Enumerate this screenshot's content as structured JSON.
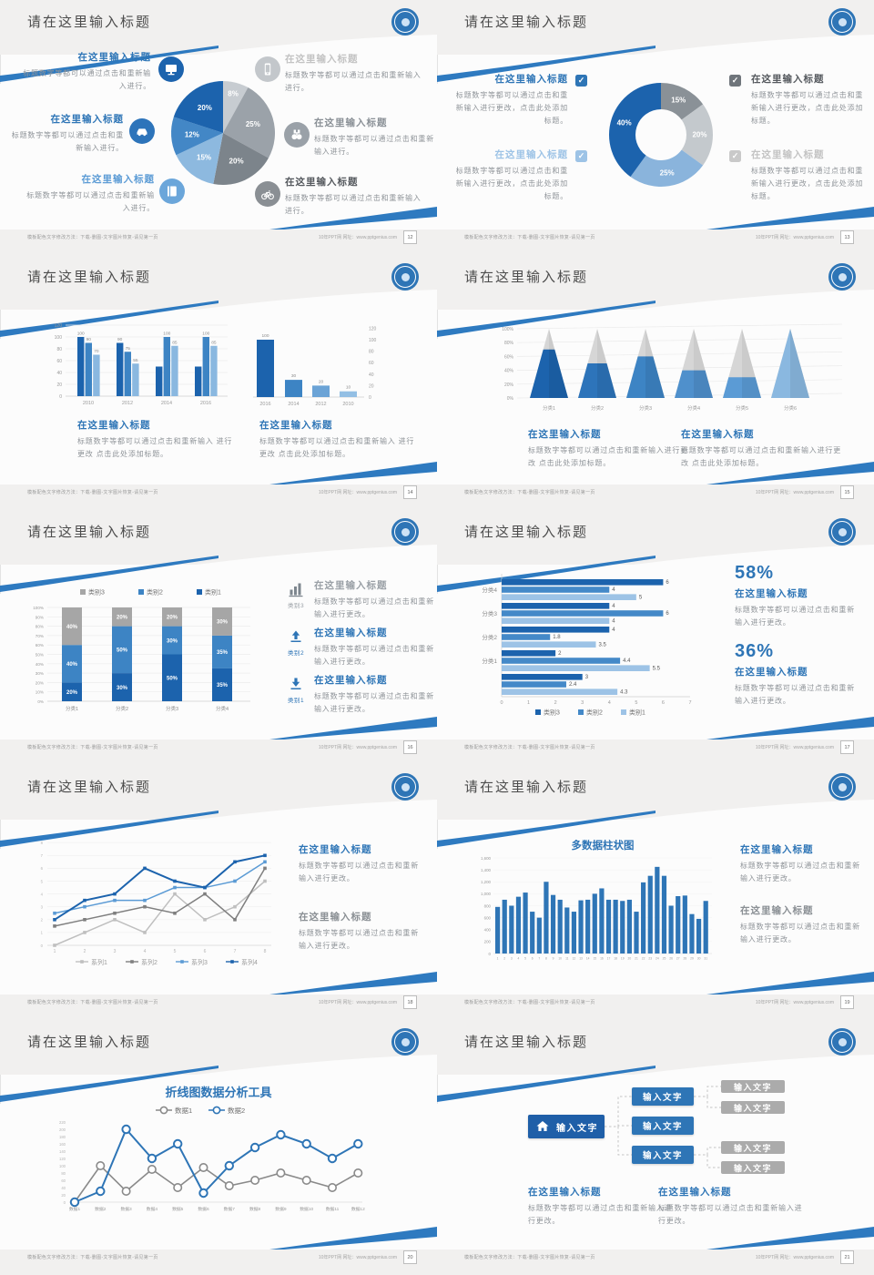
{
  "colors": {
    "accent": "#2e75b6",
    "header_band": "#f1f0ef",
    "slide_bg": "#fcfcfc",
    "title_text": "#4c4c4c",
    "body_text": "#8f9499"
  },
  "footer": {
    "left": "模板配色文字修改方法：下载-删图-文字图片恢复-请见第一页",
    "right_site": "10年PPT网",
    "right_label": "网址：",
    "right_url": "www.pptgenius.com"
  },
  "chart_data": [
    {
      "type": "pie",
      "slices": [
        {
          "label": "8%",
          "value": 8,
          "color": "#c7ccd1"
        },
        {
          "label": "25%",
          "value": 25,
          "color": "#9ba2a9"
        },
        {
          "label": "20%",
          "value": 20,
          "color": "#7c848b"
        },
        {
          "label": "15%",
          "value": 15,
          "color": "#8db9df"
        },
        {
          "label": "12%",
          "value": 12,
          "color": "#4387c6"
        },
        {
          "label": "20%",
          "value": 20,
          "color": "#1c63ad"
        }
      ]
    },
    {
      "type": "donut",
      "slices": [
        {
          "label": "15%",
          "value": 15,
          "color": "#8a9197"
        },
        {
          "label": "20%",
          "value": 20,
          "color": "#c4c9cd"
        },
        {
          "label": "25%",
          "value": 25,
          "color": "#8ab4dc"
        },
        {
          "label": "40%",
          "value": 40,
          "color": "#1c63ad"
        }
      ]
    },
    {
      "type": "grouped_bar",
      "categories": [
        "2010",
        "2012",
        "2014",
        "2016"
      ],
      "ylim": [
        0,
        120
      ],
      "yticks": [
        "0",
        "20",
        "40",
        "60",
        "80",
        "100",
        "120"
      ],
      "series": [
        {
          "name": "系列1",
          "color": "#1c63ad",
          "values": [
            100,
            90,
            50,
            50
          ]
        },
        {
          "name": "系列2",
          "color": "#3d84c4",
          "values": [
            90,
            75,
            100,
            100
          ]
        },
        {
          "name": "系列3",
          "color": "#8ab8e0",
          "values": [
            70,
            55,
            85,
            85
          ]
        }
      ],
      "value_labels": [
        [
          "100",
          "90",
          "70"
        ],
        [
          "90",
          "75",
          "55"
        ],
        [
          "",
          "100",
          "85"
        ],
        [
          "",
          "100",
          "85"
        ]
      ]
    },
    {
      "type": "bar",
      "categories": [
        "2016",
        "2014",
        "2012",
        "2010"
      ],
      "values": [
        100,
        30,
        20,
        10
      ],
      "value_labels": [
        "100",
        "30",
        "20",
        "10"
      ],
      "ylim": [
        0,
        120
      ],
      "y_axis": "right",
      "colors": [
        "#1c63ad",
        "#3d84c4",
        "#6ba3d6",
        "#93bfe4"
      ],
      "yticks": [
        "0",
        "20",
        "40",
        "60",
        "80",
        "100",
        "120"
      ]
    },
    {
      "type": "pyramid",
      "categories": [
        "分类1",
        "分类2",
        "分类3",
        "分类4",
        "分类5",
        "分类6"
      ],
      "fill_percent": [
        70,
        50,
        60,
        40,
        30,
        100
      ],
      "colors": [
        "#1c63ad",
        "#2d74ba",
        "#3d84c4",
        "#4f90cc",
        "#5b9bd5",
        "#8ab8e0"
      ],
      "yticks": [
        "0%",
        "20%",
        "40%",
        "60%",
        "80%",
        "100%"
      ]
    },
    {
      "type": "stacked_bar",
      "categories": [
        "分类1",
        "分类2",
        "分类3",
        "分类4"
      ],
      "series": [
        {
          "name": "类别1",
          "color": "#1c63ad",
          "values": [
            20,
            30,
            50,
            35
          ]
        },
        {
          "name": "类别2",
          "color": "#3d84c4",
          "values": [
            40,
            50,
            30,
            35
          ]
        },
        {
          "name": "类别3",
          "color": "#a6a6a6",
          "values": [
            40,
            20,
            20,
            30
          ]
        }
      ],
      "legend": [
        "类别3",
        "类别2",
        "类别1"
      ],
      "legend_colors": [
        "#a6a6a6",
        "#3d84c4",
        "#1c63ad"
      ],
      "yticks": [
        "0%",
        "10%",
        "20%",
        "30%",
        "40%",
        "50%",
        "60%",
        "70%",
        "80%",
        "90%",
        "100%"
      ]
    },
    {
      "type": "hbar",
      "xticks": [
        "0",
        "1",
        "2",
        "3",
        "4",
        "5",
        "6",
        "7"
      ],
      "xlim": [
        0,
        7
      ],
      "groups": [
        {
          "label": "分类4",
          "values": [
            6,
            4,
            5
          ]
        },
        {
          "label": "分类3",
          "values": [
            4,
            6,
            4
          ]
        },
        {
          "label": "分类2",
          "values": [
            4,
            1.8,
            3.5
          ]
        },
        {
          "label": "分类1",
          "values": [
            2,
            4.4,
            5.5
          ]
        },
        {
          "label": "",
          "values": [
            3,
            2.4,
            4.3
          ]
        }
      ],
      "value_labels": [
        [
          "6",
          "4",
          "5"
        ],
        [
          "4",
          "6",
          "4"
        ],
        [
          "4",
          "1.8",
          "3.5"
        ],
        [
          "2",
          "4.4",
          "5.5"
        ],
        [
          "3",
          "2.4",
          "4.3"
        ]
      ],
      "series_names": [
        "类别3",
        "类别2",
        "类别1"
      ],
      "series_colors": [
        "#1c63ad",
        "#4489c8",
        "#9dc3e6"
      ]
    },
    {
      "type": "line",
      "xticks": [
        "1",
        "2",
        "3",
        "4",
        "5",
        "6",
        "7",
        "8"
      ],
      "ylim": [
        0,
        8
      ],
      "yticks": [
        "0",
        "1",
        "2",
        "3",
        "4",
        "5",
        "6",
        "7",
        "8"
      ],
      "series": [
        {
          "name": "系列1",
          "color": "#bfbfbf",
          "values": [
            0,
            1,
            2,
            1,
            4,
            2,
            3,
            5
          ]
        },
        {
          "name": "系列2",
          "color": "#7f7f7f",
          "values": [
            1.5,
            2,
            2.5,
            3,
            2.5,
            4,
            2,
            6
          ]
        },
        {
          "name": "系列3",
          "color": "#5b9bd5",
          "values": [
            2.5,
            3,
            3.5,
            3.5,
            4.5,
            4.5,
            5,
            6.5
          ]
        },
        {
          "name": "系列4",
          "color": "#1c63ad",
          "values": [
            2,
            3.5,
            4,
            6,
            5,
            4.5,
            6.5,
            7
          ]
        }
      ]
    },
    {
      "type": "column",
      "title": "多数据柱状图",
      "color": "#2e75b6",
      "ylim": [
        0,
        1600
      ],
      "yticks": [
        "0",
        "200",
        "400",
        "600",
        "800",
        "1,000",
        "1,200",
        "1,400",
        "1,600"
      ],
      "categories": [
        "1",
        "2",
        "3",
        "4",
        "5",
        "6",
        "7",
        "8",
        "9",
        "10",
        "11",
        "12",
        "13",
        "14",
        "15",
        "16",
        "17",
        "18",
        "19",
        "20",
        "21",
        "22",
        "23",
        "24",
        "25",
        "26",
        "27",
        "28",
        "29",
        "30",
        "31"
      ],
      "values": [
        780,
        900,
        800,
        950,
        1020,
        700,
        600,
        1200,
        980,
        900,
        770,
        700,
        890,
        900,
        1000,
        1090,
        900,
        900,
        880,
        900,
        700,
        1190,
        1300,
        1450,
        1300,
        800,
        960,
        970,
        660,
        580,
        880
      ]
    },
    {
      "type": "line_markers",
      "title": "折线图数据分析工具",
      "ylim": [
        0,
        220
      ],
      "yticks": [
        "0",
        "20",
        "40",
        "60",
        "80",
        "100",
        "120",
        "140",
        "160",
        "180",
        "200",
        "220"
      ],
      "categories": [
        "数据1",
        "数据2",
        "数据3",
        "数据4",
        "数据5",
        "数据6",
        "数据7",
        "数据8",
        "数据9",
        "数据10",
        "数据11",
        "数据12"
      ],
      "series": [
        {
          "name": "数据1",
          "color": "#8a8a8a",
          "values": [
            0,
            100,
            30,
            90,
            40,
            95,
            45,
            60,
            80,
            60,
            40,
            80
          ]
        },
        {
          "name": "数据2",
          "color": "#2e75b6",
          "values": [
            0,
            30,
            200,
            120,
            160,
            25,
            100,
            150,
            185,
            160,
            120,
            160
          ]
        }
      ]
    }
  ],
  "slides": [
    {
      "title": "请在这里输入标题",
      "page": "12",
      "type": "pie",
      "chart": 0,
      "callouts": [
        {
          "header": "在这里输入标题",
          "header_color": "#2e75b6",
          "icon": "monitor",
          "icon_bg": "#1c63ad",
          "body": "标题数字等都可以通过点击和重新输入进行。"
        },
        {
          "header": "在这里输入标题",
          "header_color": "#2e75b6",
          "icon": "car",
          "icon_bg": "#2d74ba",
          "body": "标题数字等都可以通过点击和重新输入进行。"
        },
        {
          "header": "在这里输入标题",
          "header_color": "#5b9bd5",
          "icon": "book",
          "icon_bg": "#6ba6da",
          "body": "标题数字等都可以通过点击和重新输入进行。"
        },
        {
          "header": "在这里输入标题",
          "header_color": "#c3c3c3",
          "icon": "phone",
          "icon_bg": "#c3c7cb",
          "body": "标题数字等都可以通过点击和重新输入进行。"
        },
        {
          "header": "在这里输入标题",
          "header_color": "#8a9096",
          "icon": "binoculars",
          "icon_bg": "#9aa1a8",
          "body": "标题数字等都可以通过点击和重新输入进行。"
        },
        {
          "header": "在这里输入标题",
          "header_color": "#55595e",
          "icon": "bicycle",
          "icon_bg": "#8a8f94",
          "body": "标题数字等都可以通过点击和重新输入进行。"
        }
      ]
    },
    {
      "title": "请在这里输入标题",
      "page": "13",
      "type": "donut",
      "chart": 1,
      "callouts": [
        {
          "header": "在这里输入标题",
          "header_color": "#2e75b6",
          "check_color": "#2e75b6",
          "body": "标题数字等都可以通过点击和重新输入进行更改，点击此处添加标题。"
        },
        {
          "header": "在这里输入标题",
          "header_color": "#9dc3e6",
          "check_color": "#9dc3e6",
          "body": "标题数字等都可以通过点击和重新输入进行更改，点击此处添加标题。"
        },
        {
          "header": "在这里输入标题",
          "header_color": "#55595e",
          "check_color": "#6f757b",
          "body": "标题数字等都可以通过点击和重新输入进行更改，点击此处添加标题。"
        },
        {
          "header": "在这里输入标题",
          "header_color": "#c3c3c3",
          "check_color": "#c9c9c9",
          "body": "标题数字等都可以通过点击和重新输入进行更改，点击此处添加标题。"
        }
      ]
    },
    {
      "title": "请在这里输入标题",
      "page": "14",
      "type": "two_bars",
      "chart": 2,
      "chart2": 3,
      "callouts": [
        {
          "header": "在这里输入标题",
          "header_color": "#2e75b6",
          "body": "标题数字等都可以通过点击和重新输入 进行更改 点击此处添加标题。"
        },
        {
          "header": "在这里输入标题",
          "header_color": "#2e75b6",
          "body": "标题数字等都可以通过点击和重新输入 进行更改 点击此处添加标题。"
        }
      ]
    },
    {
      "title": "请在这里输入标题",
      "page": "15",
      "type": "pyramid",
      "chart": 4,
      "callouts": [
        {
          "header": "在这里输入标题",
          "header_color": "#2e75b6",
          "body": "标题数字等都可以通过点击和重新输入进行更 改 点击此处添加标题。"
        },
        {
          "header": "在这里输入标题",
          "header_color": "#2e75b6",
          "body": "标题数字等都可以通过点击和重新输入进行更 改 点击此处添加标题。"
        }
      ]
    },
    {
      "title": "请在这里输入标题",
      "page": "16",
      "type": "stacked_bar",
      "chart": 5,
      "callouts": [
        {
          "header": "在这里输入标题",
          "header_color": "#9aa0a6",
          "icon5": "chart",
          "icon5_color": "#7d868e",
          "caption": "类别3",
          "caption_color": "#9aa0a6",
          "body": "标题数字等都可以通过点击和重新输入进行更改。"
        },
        {
          "header": "在这里输入标题",
          "header_color": "#2e75b6",
          "icon5": "upload",
          "icon5_color": "#2e75b6",
          "caption": "类别2",
          "caption_color": "#2e75b6",
          "body": "标题数字等都可以通过点击和重新输入进行更改。"
        },
        {
          "header": "在这里输入标题",
          "header_color": "#2e75b6",
          "icon5": "download",
          "icon5_color": "#2e75b6",
          "caption": "类别1",
          "caption_color": "#2e75b6",
          "body": "标题数字等都可以通过点击和重新输入进行更改。"
        }
      ]
    },
    {
      "title": "请在这里输入标题",
      "page": "17",
      "type": "hbar",
      "chart": 6,
      "callouts": [
        {
          "stat": "58%",
          "header": "在这里输入标题",
          "header_color": "#2e75b6",
          "body": "标题数字等都可以通过点击和重新输入进行更改。"
        },
        {
          "stat": "36%",
          "header": "在这里输入标题",
          "header_color": "#2e75b6",
          "body": "标题数字等都可以通过点击和重新输入进行更改。"
        }
      ]
    },
    {
      "title": "请在这里输入标题",
      "page": "18",
      "type": "line",
      "chart": 7,
      "callouts": [
        {
          "header": "在这里输入标题",
          "header_color": "#2e75b6",
          "body": "标题数字等都可以通过点击和重新输入进行更改。"
        },
        {
          "header": "在这里输入标题",
          "header_color": "#8a8f94",
          "body": "标题数字等都可以通过点击和重新输入进行更改。"
        }
      ]
    },
    {
      "title": "请在这里输入标题",
      "page": "19",
      "type": "column",
      "chart": 8,
      "callouts": [
        {
          "header": "在这里输入标题",
          "header_color": "#2e75b6",
          "body": "标题数字等都可以通过点击和重新输入进行更改。"
        },
        {
          "header": "在这里输入标题",
          "header_color": "#8a8f94",
          "body": "标题数字等都可以通过点击和重新输入进行更改。"
        }
      ]
    },
    {
      "title": "请在这里输入标题",
      "page": "20",
      "type": "line_markers",
      "chart": 9,
      "callouts": []
    },
    {
      "title": "请在这里输入标题",
      "page": "21",
      "type": "diagram",
      "diagram": {
        "root": "输入文字",
        "mid": [
          "输入文字",
          "输入文字",
          "输入文字"
        ],
        "leaves": [
          "输入文字",
          "输入文字",
          "输入文字",
          "输入文字"
        ],
        "root_color": "#1f5fa8",
        "mid_color": "#2e75b6",
        "leaf_color": "#ababab"
      },
      "callouts": [
        {
          "header": "在这里输入标题",
          "header_color": "#2e75b6",
          "body": "标题数字等都可以通过点击和重新输入进行更改。"
        },
        {
          "header": "在这里输入标题",
          "header_color": "#2e75b6",
          "body": "标题数字等都可以通过点击和重新输入进行更改。"
        }
      ]
    }
  ]
}
